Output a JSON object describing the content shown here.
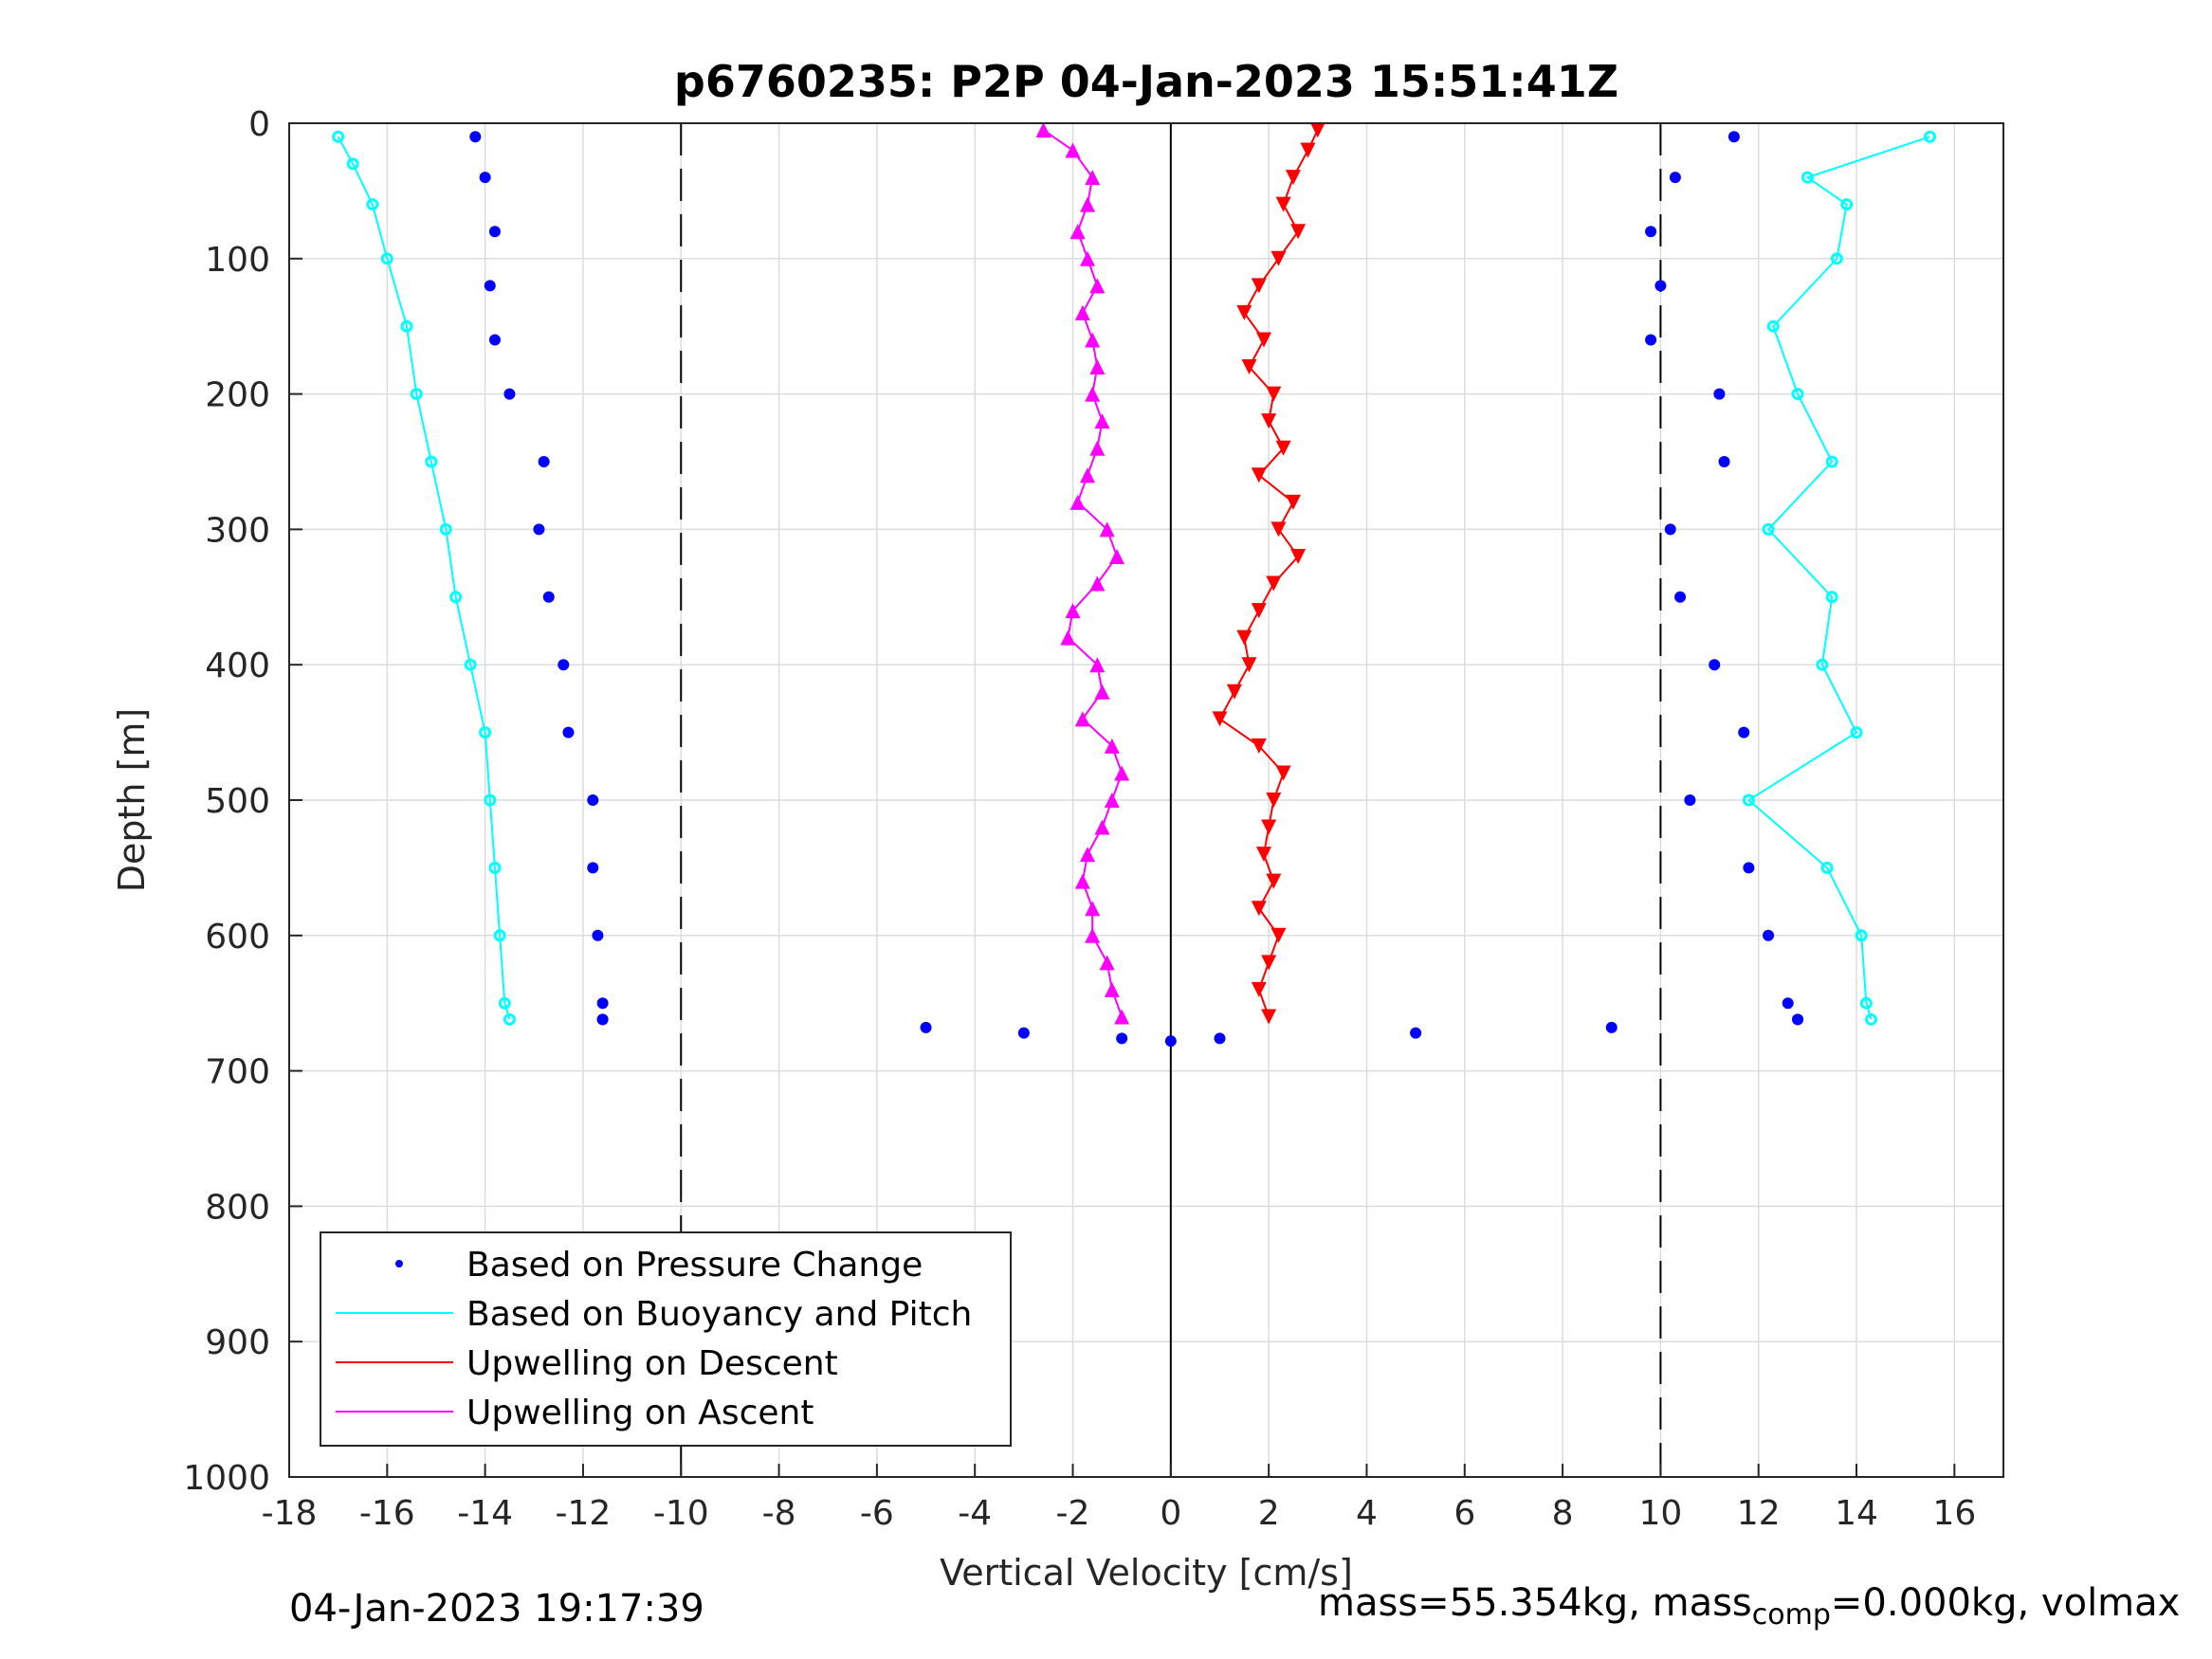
{
  "chart_data": {
    "type": "scatter",
    "title": "p6760235: P2P 04-Jan-2023 15:51:41Z",
    "xlabel": "Vertical Velocity [cm/s]",
    "ylabel": "Depth [m]",
    "xlim": [
      -18,
      17
    ],
    "ylim": [
      0,
      1000
    ],
    "y_reversed": true,
    "grid": true,
    "xticks": [
      -18,
      -16,
      -14,
      -12,
      -10,
      -8,
      -6,
      -4,
      -2,
      0,
      2,
      4,
      6,
      8,
      10,
      12,
      14,
      16
    ],
    "yticks": [
      0,
      100,
      200,
      300,
      400,
      500,
      600,
      700,
      800,
      900,
      1000
    ],
    "xtick_labels": [
      "-18",
      "-16",
      "-14",
      "-12",
      "-10",
      "-8",
      "-6",
      "-4",
      "-2",
      "0",
      "2",
      "4",
      "6",
      "8",
      "10",
      "12",
      "14",
      "16"
    ],
    "ytick_labels": [
      "0",
      "100",
      "200",
      "300",
      "400",
      "500",
      "600",
      "700",
      "800",
      "900",
      "1000"
    ],
    "reference_lines": {
      "dashed_x": [
        -10,
        10
      ],
      "solid_x": [
        0
      ]
    },
    "legend": {
      "placement": "bottom-left",
      "entries": [
        "Based on Pressure Change",
        "Based on Buoyancy and Pitch",
        "Upwelling on Descent",
        "Upwelling on Ascent"
      ]
    },
    "colors": {
      "pressure": "#0000ff",
      "buoyancy": "#00ffff",
      "descent": "#ff0000",
      "ascent": "#ff00ff"
    },
    "series": [
      {
        "name": "Based on Pressure Change",
        "marker": "dot",
        "profiles": [
          {
            "depth": [
              10,
              40,
              80,
              120,
              160,
              200,
              250,
              300,
              350,
              400,
              450,
              500,
              550,
              600,
              650,
              662
            ],
            "velocity": [
              -14.2,
              -14,
              -13.8,
              -13.9,
              -13.8,
              -13.5,
              -12.8,
              -12.9,
              -12.7,
              -12.4,
              -12.3,
              -11.8,
              -11.8,
              -11.7,
              -11.6,
              -11.6
            ]
          },
          {
            "depth": [
              10,
              40,
              80,
              120,
              160,
              200,
              250,
              300,
              350,
              400,
              450,
              500,
              550,
              600,
              650,
              662
            ],
            "velocity": [
              11.5,
              10.3,
              9.8,
              10,
              9.8,
              11.2,
              11.3,
              10.2,
              10.4,
              11.1,
              11.7,
              10.6,
              11.8,
              12.2,
              12.6,
              12.8
            ]
          }
        ]
      },
      {
        "name": "Based on Buoyancy and Pitch",
        "marker": "line",
        "profiles": [
          {
            "depth": [
              10,
              30,
              60,
              100,
              150,
              200,
              250,
              300,
              350,
              400,
              450,
              500,
              550,
              600,
              650,
              662
            ],
            "velocity": [
              -17,
              -16.7,
              -16.3,
              -16,
              -15.6,
              -15.4,
              -15.1,
              -14.8,
              -14.6,
              -14.3,
              -14,
              -13.9,
              -13.8,
              -13.7,
              -13.6,
              -13.5
            ]
          },
          {
            "depth": [
              10,
              40,
              60,
              100,
              150,
              200,
              250,
              300,
              350,
              400,
              450,
              500,
              550,
              600,
              650,
              662
            ],
            "velocity": [
              15.5,
              13,
              13.8,
              13.6,
              12.3,
              12.8,
              13.5,
              12.2,
              13.5,
              13.3,
              14,
              11.8,
              13.4,
              14.1,
              14.2,
              14.3
            ]
          }
        ]
      },
      {
        "name": "Upwelling on Descent",
        "marker": "triangle-down",
        "depth": [
          5,
          20,
          40,
          60,
          80,
          100,
          120,
          140,
          160,
          180,
          200,
          220,
          240,
          260,
          280,
          300,
          320,
          340,
          360,
          380,
          400,
          420,
          440,
          460,
          480,
          500,
          520,
          540,
          560,
          580,
          600,
          620,
          640,
          660
        ],
        "velocity": [
          3,
          2.8,
          2.5,
          2.3,
          2.6,
          2.2,
          1.8,
          1.5,
          1.9,
          1.6,
          2.1,
          2.0,
          2.3,
          1.8,
          2.5,
          2.2,
          2.6,
          2.1,
          1.8,
          1.5,
          1.6,
          1.3,
          1.0,
          1.8,
          2.3,
          2.1,
          2.0,
          1.9,
          2.1,
          1.8,
          2.2,
          2.0,
          1.8,
          2.0
        ]
      },
      {
        "name": "Upwelling on Ascent",
        "marker": "triangle-up",
        "depth": [
          5,
          20,
          40,
          60,
          80,
          100,
          120,
          140,
          160,
          180,
          200,
          220,
          240,
          260,
          280,
          300,
          320,
          340,
          360,
          380,
          400,
          420,
          440,
          460,
          480,
          500,
          520,
          540,
          560,
          580,
          600,
          620,
          640,
          660
        ],
        "velocity": [
          -2.6,
          -2.0,
          -1.6,
          -1.7,
          -1.9,
          -1.7,
          -1.5,
          -1.8,
          -1.6,
          -1.5,
          -1.6,
          -1.4,
          -1.5,
          -1.7,
          -1.9,
          -1.3,
          -1.1,
          -1.5,
          -2.0,
          -2.1,
          -1.5,
          -1.4,
          -1.8,
          -1.2,
          -1.0,
          -1.2,
          -1.4,
          -1.7,
          -1.8,
          -1.6,
          -1.6,
          -1.3,
          -1.2,
          -1.0
        ]
      }
    ],
    "bottom_turnaround": {
      "depth": [
        662,
        668,
        672,
        676,
        678,
        676,
        672,
        668,
        662
      ],
      "velocity": [
        -11.6,
        -5,
        -3,
        -1,
        0,
        1,
        5,
        9,
        12.8
      ]
    }
  },
  "footer": {
    "timestamp": "04-Jan-2023 19:17:39",
    "params_pre": "mass=55.354kg, mass",
    "params_sub": "comp",
    "params_post": "=0.000kg, volmax"
  }
}
